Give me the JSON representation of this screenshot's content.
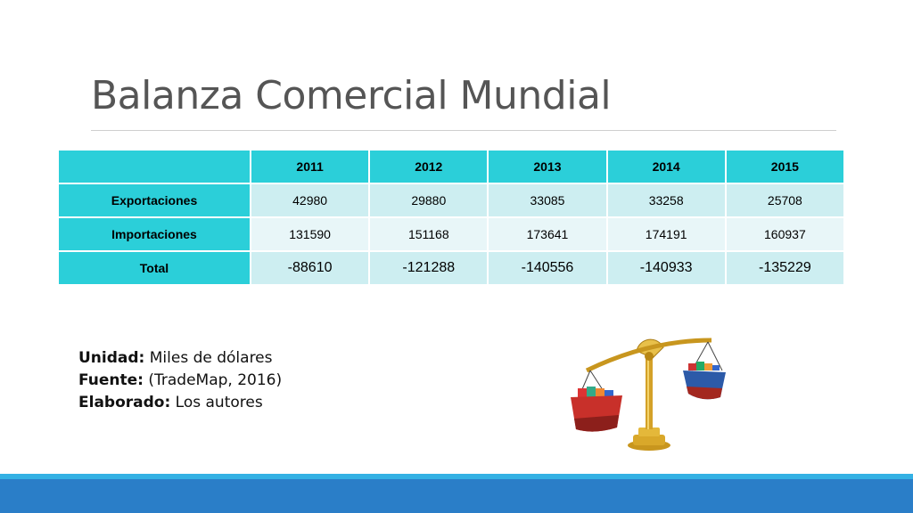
{
  "slide": {
    "title": "Balanza Comercial Mundial"
  },
  "table": {
    "header": [
      "",
      "2011",
      "2012",
      "2013",
      "2014",
      "2015"
    ],
    "rows": [
      {
        "label": "Exportaciones",
        "values": [
          "42980",
          "29880",
          "33085",
          "33258",
          "25708"
        ]
      },
      {
        "label": "Importaciones",
        "values": [
          "131590",
          "151168",
          "173641",
          "174191",
          "160937"
        ]
      },
      {
        "label": "Total",
        "values": [
          "-88610",
          "-121288",
          "-140556",
          "-140933",
          "-135229"
        ]
      }
    ]
  },
  "notes": {
    "unit_label": "Unidad:",
    "unit_value": " Miles de dólares",
    "source_label": "Fuente:",
    "source_value": " (TradeMap, 2016)",
    "author_label": "Elaborado:",
    "author_value": " Los autores"
  },
  "colors": {
    "header_bg": "#2bcfd9",
    "row_light": "#e8f6f8",
    "row_dark": "#cdeef1",
    "footer_blue": "#2a7ec8",
    "footer_accent": "#34b1e4"
  },
  "illustration": {
    "icon": "trade-balance-scale-ships-icon"
  }
}
